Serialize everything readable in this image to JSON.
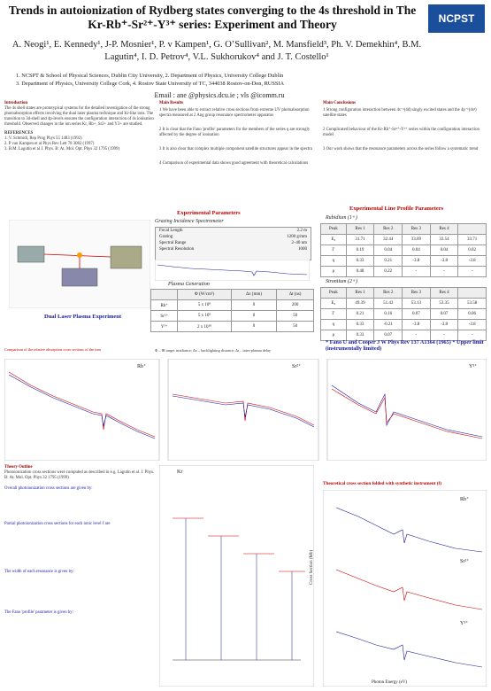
{
  "header": {
    "title": "Trends in autoionization of Rydberg states converging to the 4s threshold in The Kr-Rb⁺-Sr²⁺-Y³⁺ series: Experiment and Theory",
    "authors": "A. Neogi¹, E. Kennedy¹, J-P. Mosnier¹, P. v Kampen¹, G. O’Sullivan², M. Mansfield³, Ph. V. Demekhin⁴, B.M. Lagutin⁴, I. D. Petrov⁴, V.L. Sukhorukov⁴ and J. T. Costello¹",
    "affil1": "1. NCSPT & School of Physical Sciences, Dublin City University,   2. Department of Physics, University College Dublin",
    "affil2": "3. Department of Physics, University College Cork,  4. Rostov State University of TC, 344038 Rostov-on-Don, RUSSIA",
    "email": "Email : ane @physics.dcu.ie ; vls @icomm.ru",
    "logo": "NCPST"
  },
  "intro": {
    "heading": "Introduction",
    "text": "The 4s shell states are prototypical systems for the detailed investigation of the strong photoabsorption effects involving the dual laser plasma technique and Kr-like ions. The transition to 3d-shell and 4p-levels ensures the configuration interaction of 4s ionisation threshold. Observed changes in the ion series Kr, Rb+, Sr2+ and Y3+ are studied.",
    "refs_heading": "REFERENCES",
    "refs": [
      "1. V. Schmidt, Rep Prog Phys 55 1483 (1992)",
      "2. P van Kampen et al Phys Rev Lett 78 3082 (1997)",
      "3. B.M. Lagutin et al J. Phys. B: At. Mol. Opt. Phys 32 1795 (1999)"
    ]
  },
  "main_results": {
    "heading": "Main Results",
    "items": [
      "1 We have been able to extract relative cross sections from extreme UV photoabsorption spectra measured at 2 Ang group resonance spectrometer apparatus",
      "2 It is clear that the Fano 'profile' parameters for the members of the series q are strongly affected by the degree of ionisation",
      "3 It is also clear that complex multiple component satellite structures appear in the spectra",
      "4 Comparison of experimental data shows good agreement with theoretical calculations"
    ]
  },
  "conclusions": {
    "heading": "Main Conclusions",
    "items": [
      "1 Strong configuration interaction between 4s⁻¹(4d) singly excited states and the 4p⁻¹(4s²) satellite states",
      "2 Complicated behaviour of the Kr-Rb⁺-Sr²⁺-Y³⁺ series within the configuration interaction model",
      "3 Our work shows that the resonance parameters across the series follow a systematic trend"
    ]
  },
  "exp_params": {
    "heading": "Experimental Parameters",
    "spectrometer": "Grazing Incidence Spectrometer",
    "rows": [
      {
        "label": "Focal Length",
        "value": "2.2 m"
      },
      {
        "label": "Grating",
        "value": "1200 g/mm"
      },
      {
        "label": "Spectral Range",
        "value": "2–40 nm"
      },
      {
        "label": "Spectral Resolution",
        "value": "1000"
      }
    ],
    "plasma_heading": "Plasma Generation",
    "plasma_cols": [
      "",
      "Φ (W/cm²)",
      "Δx (mm)",
      "Δt (ns)"
    ],
    "plasma_rows": [
      [
        "Rb⁺",
        "5 x 10⁹",
        "0",
        "200"
      ],
      [
        "Sr²⁺",
        "5 x 10⁹",
        "0",
        "50"
      ],
      [
        "Y³⁺",
        "2 x 10¹⁰",
        "0",
        "50"
      ]
    ],
    "plasma_note": "Φ – IR target irradiance; Δx – backlighting distance; Δt – inter-plasma delay"
  },
  "dual_laser": "Dual Laser Plasma Experiment",
  "dual_caption": "Comparison of the relative absorption cross sections of the ions",
  "line_params": {
    "heading": "Experimental Line Profile Parameters",
    "rb_label": "Rubidium (1+)",
    "sr_label": "Strontium (2+)",
    "cols": [
      "Peak",
      "Res 1",
      "Res 2",
      "Res 3",
      "Res 4"
    ],
    "rb_rows": [
      [
        "E₀",
        "31.71",
        "32.44",
        "33.09",
        "33.54",
        "33.71"
      ],
      [
        "Γ",
        "0.19",
        "0.04",
        "0.04",
        "0.04",
        "0.02"
      ],
      [
        "q",
        "0.33",
        "0.21",
        "-3.8",
        "-3.8",
        "-3.8"
      ],
      [
        "ρ",
        "0.48",
        "0.22",
        "-",
        "-",
        "-"
      ]
    ],
    "sr_rows": [
      [
        "E₀",
        "49.39",
        "51.43",
        "53.13",
        "53.35",
        "53.58"
      ],
      [
        "Γ",
        "0.21",
        "0.16",
        "0.07",
        "0.07",
        "0.06"
      ],
      [
        "q",
        "0.33",
        "-0.21",
        "-3.8",
        "-3.8",
        "-3.8"
      ],
      [
        "ρ",
        "0.33",
        "0.07",
        "-",
        "-",
        "-"
      ]
    ],
    "footnote": "* Fano U and Cooper J W Phys Rev 137 A1364 (1965)  * Upper limit (instrumentally limited)"
  },
  "theory": {
    "heading": "Theory Outline",
    "text": "Photoionization cross sections were computed as described in e.g. Lagutin et al. J. Phys. B: At. Mol. Opt. Phys 32 1795 (1999)",
    "sub1": "Overall photoionization cross sections are given by:",
    "sub2": "Partial photoionization cross sections for each ionic level f are",
    "sub3": "The width of each resonance is given by:",
    "sub4": "The Fano 'profile' parameter is given by:"
  },
  "lower_right_caption": "Theoretical cross section folded with synthetic instrument (f)",
  "chart_labels": {
    "rb": "Rb⁺",
    "sr": "Sr²⁺",
    "y": "Y³⁺",
    "kr": "Kr",
    "xlabel": "Photon Energy (eV)",
    "ylabel": "Cross Section (Mb)"
  },
  "colors": {
    "red": "#c00000",
    "blue": "#1a1aa0",
    "logo": "#1b4f9c"
  }
}
